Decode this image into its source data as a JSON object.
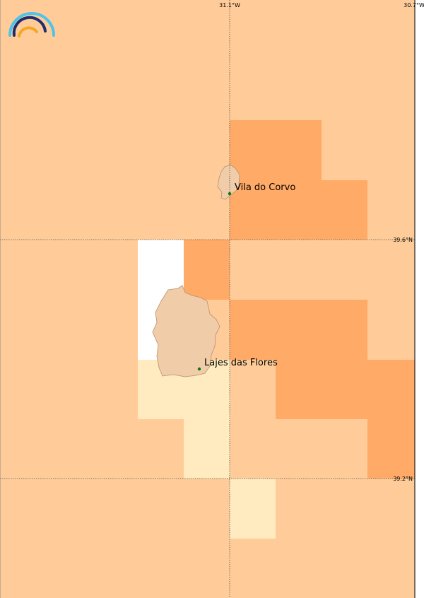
{
  "map": {
    "longitude_labels": [
      "31.1°W",
      "30.7°W"
    ],
    "latitude_labels": [
      "39.6°N",
      "39.2°N"
    ],
    "places": [
      {
        "name": "Vila do Corvo"
      },
      {
        "name": "Lajes das Flores"
      }
    ]
  }
}
